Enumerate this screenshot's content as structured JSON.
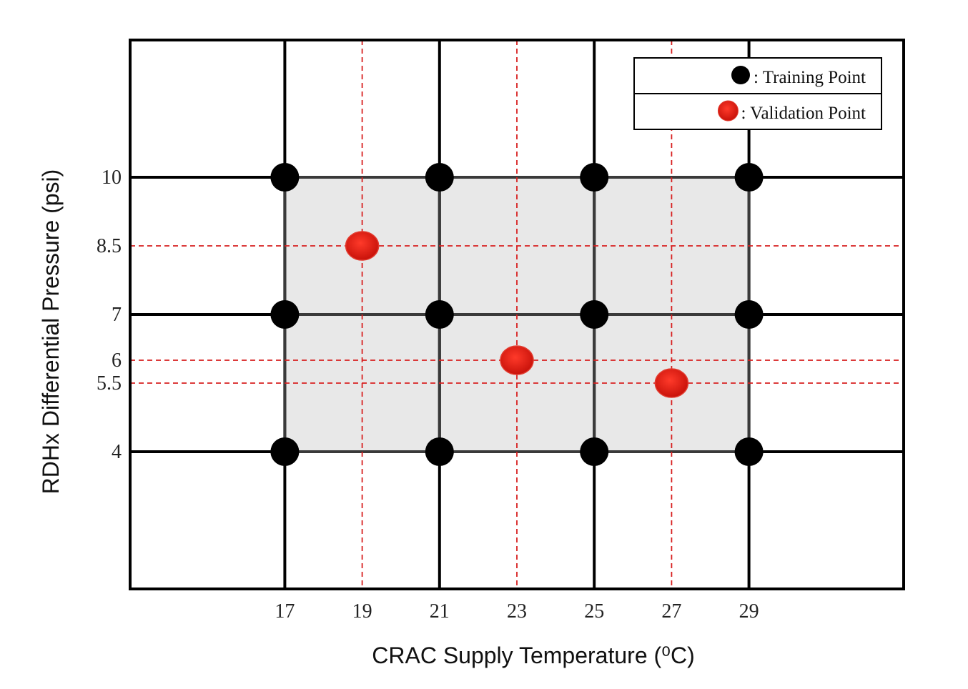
{
  "chart_data": {
    "type": "scatter",
    "xlabel": "CRAC Supply Temperature (⁰C)",
    "ylabel": "RDHx Differential Pressure (psi)",
    "x_ticks": [
      "17",
      "19",
      "21",
      "23",
      "25",
      "27",
      "29"
    ],
    "y_ticks": [
      "10",
      "8.5",
      "7",
      "6",
      "5.5",
      "4"
    ],
    "xlim": [
      13,
      33
    ],
    "ylim": [
      1,
      13
    ],
    "grid": true,
    "legend_position": "top-right",
    "colors": {
      "training": "#000000",
      "validation": "#e8160c",
      "shade": "#e8e8e8",
      "dashed": "#d71f1f"
    },
    "series": [
      {
        "name": "Training Point",
        "legend_label": ": Training Point",
        "points": [
          {
            "x": 17,
            "y": 10
          },
          {
            "x": 21,
            "y": 10
          },
          {
            "x": 25,
            "y": 10
          },
          {
            "x": 29,
            "y": 10
          },
          {
            "x": 17,
            "y": 7
          },
          {
            "x": 21,
            "y": 7
          },
          {
            "x": 25,
            "y": 7
          },
          {
            "x": 29,
            "y": 7
          },
          {
            "x": 17,
            "y": 4
          },
          {
            "x": 21,
            "y": 4
          },
          {
            "x": 25,
            "y": 4
          },
          {
            "x": 29,
            "y": 4
          }
        ]
      },
      {
        "name": "Validation Point",
        "legend_label": ": Validation Point",
        "points": [
          {
            "x": 19,
            "y": 8.5
          },
          {
            "x": 23,
            "y": 6
          },
          {
            "x": 27,
            "y": 5.5
          }
        ]
      }
    ],
    "training_region": {
      "x": [
        17,
        29
      ],
      "y": [
        4,
        10
      ]
    }
  }
}
